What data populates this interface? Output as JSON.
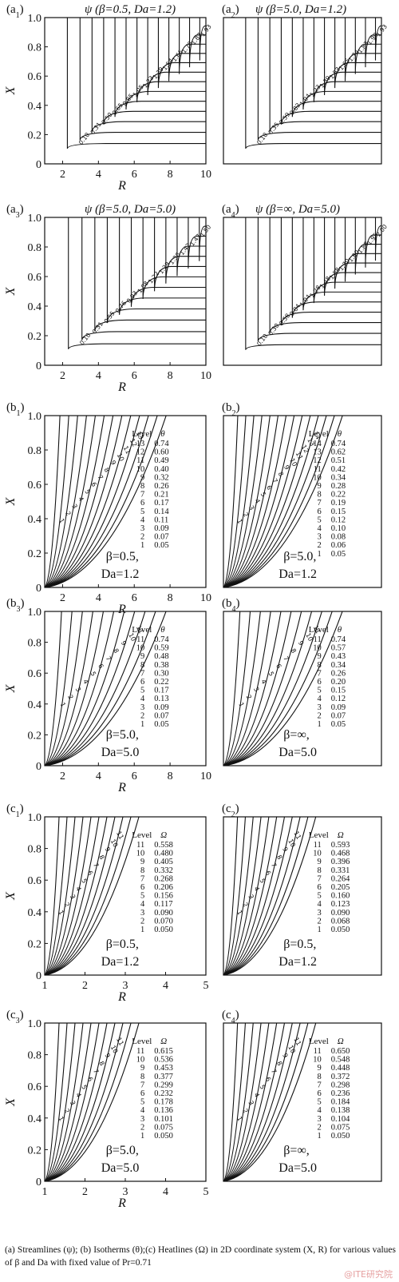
{
  "figure": {
    "caption": "(a) Streamlines (ψ); (b) Isotherms (θ);(c) Heatlines (Ω) in 2D coordinate system (X, R) for various values of β and Da with fixed value of Pr=0.71",
    "watermark": "@ITE研究院"
  },
  "chart_data": [
    {
      "id": "a1",
      "label_letter": "a",
      "label_sub": "1",
      "type": "contour",
      "title": "ψ (β=0.5, Da=1.2)",
      "xlabel": "R",
      "ylabel": "X",
      "xlim": [
        1,
        10
      ],
      "ylim": [
        0,
        1
      ],
      "xticks": [
        "2",
        "4",
        "6",
        "8",
        "10"
      ],
      "yticks": [
        "0",
        "0.2",
        "0.4",
        "0.6",
        "0.8",
        "1.0"
      ],
      "levels": [
        "0.10",
        "0.31",
        "0.50",
        "0.65",
        "0.85",
        "1.05",
        "1.23",
        "1.39",
        "1.54",
        "1.66",
        "1.78",
        "1.87",
        "1.93"
      ]
    },
    {
      "id": "a2",
      "label_letter": "a",
      "label_sub": "2",
      "type": "contour",
      "title": "ψ (β=5.0, Da=1.2)",
      "xlabel": "",
      "ylabel": "",
      "xlim": [
        1,
        10
      ],
      "ylim": [
        0,
        1
      ],
      "xticks": [],
      "yticks": [],
      "levels": [
        "0.10",
        "0.35",
        "0.59",
        "0.82",
        "1.04",
        "1.23",
        "1.39",
        "1.53",
        "1.65",
        "1.74",
        "1.83",
        "1.90",
        "1.93"
      ]
    },
    {
      "id": "a3",
      "label_letter": "a",
      "label_sub": "3",
      "type": "contour",
      "title": "ψ (β=5.0, Da=5.0)",
      "xlabel": "R",
      "ylabel": "X",
      "xlim": [
        1,
        10
      ],
      "ylim": [
        0,
        1
      ],
      "xticks": [
        "2",
        "4",
        "6",
        "8",
        "10"
      ],
      "yticks": [
        "0",
        "0.2",
        "0.4",
        "0.6",
        "0.8",
        "1.0"
      ],
      "levels": [
        "0.10",
        "0.31",
        "0.55",
        "0.76",
        "0.93",
        "1.08",
        "1.22",
        "1.29",
        "1.36",
        "1.42",
        "1.47",
        "1.50"
      ]
    },
    {
      "id": "a4",
      "label_letter": "a",
      "label_sub": "4",
      "type": "contour",
      "title": "ψ (β=∞, Da=5.0)",
      "xlabel": "",
      "ylabel": "",
      "xlim": [
        1,
        10
      ],
      "ylim": [
        0,
        1
      ],
      "xticks": [],
      "yticks": [],
      "levels": [
        "0.10",
        "0.30",
        "0.58",
        "0.84",
        "1.04",
        "1.28",
        "1.48",
        "1.58",
        "1.70",
        "1.80",
        "1.88",
        "1.95",
        "2.00"
      ]
    },
    {
      "id": "b1",
      "label_letter": "b",
      "label_sub": "1",
      "type": "contour",
      "xlabel": "R",
      "ylabel": "X",
      "xlim": [
        1,
        10
      ],
      "ylim": [
        0,
        1
      ],
      "xticks": [
        "2",
        "4",
        "6",
        "8",
        "10"
      ],
      "yticks": [
        "0",
        "0.2",
        "0.4",
        "0.6",
        "0.8",
        "1.0"
      ],
      "annot": [
        "β=0.5,",
        "Da=1.2"
      ],
      "table": {
        "head": [
          "Level",
          "θ"
        ],
        "rows": [
          [
            "13",
            "0.74"
          ],
          [
            "12",
            "0.60"
          ],
          [
            "11",
            "0.49"
          ],
          [
            "10",
            "0.40"
          ],
          [
            "9",
            "0.32"
          ],
          [
            "8",
            "0.26"
          ],
          [
            "7",
            "0.21"
          ],
          [
            "6",
            "0.17"
          ],
          [
            "5",
            "0.14"
          ],
          [
            "4",
            "0.11"
          ],
          [
            "3",
            "0.09"
          ],
          [
            "2",
            "0.07"
          ],
          [
            "1",
            "0.05"
          ]
        ]
      },
      "line_labels": [
        "13",
        "12",
        "11",
        "10",
        "9",
        "8",
        "7",
        "6",
        "5",
        "4",
        "3",
        "2",
        "1"
      ]
    },
    {
      "id": "b2",
      "label_letter": "b",
      "label_sub": "2",
      "type": "contour",
      "xlabel": "",
      "ylabel": "",
      "xlim": [
        1,
        10
      ],
      "ylim": [
        0,
        1
      ],
      "xticks": [],
      "yticks": [],
      "annot": [
        "β=5.0,",
        "Da=1.2"
      ],
      "table": {
        "head": [
          "Level",
          "θ"
        ],
        "rows": [
          [
            "14",
            "0.74"
          ],
          [
            "13",
            "0.62"
          ],
          [
            "12",
            "0.51"
          ],
          [
            "11",
            "0.42"
          ],
          [
            "10",
            "0.34"
          ],
          [
            "9",
            "0.28"
          ],
          [
            "8",
            "0.22"
          ],
          [
            "7",
            "0.19"
          ],
          [
            "6",
            "0.15"
          ],
          [
            "5",
            "0.12"
          ],
          [
            "4",
            "0.10"
          ],
          [
            "3",
            "0.08"
          ],
          [
            "2",
            "0.06"
          ],
          [
            "1",
            "0.05"
          ]
        ]
      },
      "line_labels": [
        "14",
        "13",
        "12",
        "11",
        "10",
        "9",
        "8",
        "7",
        "6",
        "5",
        "4",
        "3",
        "2",
        "1"
      ]
    },
    {
      "id": "b3",
      "label_letter": "b",
      "label_sub": "3",
      "type": "contour",
      "xlabel": "R",
      "ylabel": "X",
      "xlim": [
        1,
        10
      ],
      "ylim": [
        0,
        1
      ],
      "xticks": [
        "2",
        "4",
        "6",
        "8",
        "10"
      ],
      "yticks": [
        "0",
        "0.2",
        "0.4",
        "0.6",
        "0.8",
        "1.0"
      ],
      "annot": [
        "β=5.0,",
        "Da=5.0"
      ],
      "table": {
        "head": [
          "Level",
          "θ"
        ],
        "rows": [
          [
            "11",
            "0.74"
          ],
          [
            "10",
            "0.59"
          ],
          [
            "9",
            "0.48"
          ],
          [
            "8",
            "0.38"
          ],
          [
            "7",
            "0.30"
          ],
          [
            "6",
            "0.22"
          ],
          [
            "5",
            "0.17"
          ],
          [
            "4",
            "0.13"
          ],
          [
            "3",
            "0.09"
          ],
          [
            "2",
            "0.07"
          ],
          [
            "1",
            "0.05"
          ]
        ]
      },
      "line_labels": [
        "11",
        "10",
        "9",
        "8",
        "7",
        "6",
        "5",
        "4",
        "3",
        "2",
        "1"
      ]
    },
    {
      "id": "b4",
      "label_letter": "b",
      "label_sub": "4",
      "type": "contour",
      "xlabel": "",
      "ylabel": "",
      "xlim": [
        1,
        10
      ],
      "ylim": [
        0,
        1
      ],
      "xticks": [],
      "yticks": [],
      "annot": [
        "β=∞,",
        "Da=5.0"
      ],
      "table": {
        "head": [
          "Level",
          "θ"
        ],
        "rows": [
          [
            "11",
            "0.74"
          ],
          [
            "10",
            "0.57"
          ],
          [
            "9",
            "0.43"
          ],
          [
            "8",
            "0.34"
          ],
          [
            "7",
            "0.26"
          ],
          [
            "6",
            "0.20"
          ],
          [
            "5",
            "0.15"
          ],
          [
            "4",
            "0.12"
          ],
          [
            "3",
            "0.09"
          ],
          [
            "2",
            "0.07"
          ],
          [
            "1",
            "0.05"
          ]
        ]
      },
      "line_labels": [
        "11",
        "10",
        "9",
        "8",
        "7",
        "6",
        "5",
        "4",
        "3",
        "2",
        "1"
      ]
    },
    {
      "id": "c1",
      "label_letter": "c",
      "label_sub": "1",
      "type": "contour",
      "xlabel": "R",
      "ylabel": "X",
      "xlim": [
        1,
        5
      ],
      "ylim": [
        0,
        1
      ],
      "xticks": [
        "1",
        "2",
        "3",
        "4",
        "5"
      ],
      "yticks": [
        "0",
        "0.2",
        "0.4",
        "0.6",
        "0.8",
        "1.0"
      ],
      "annot": [
        "β=0.5,",
        "Da=1.2"
      ],
      "table": {
        "head": [
          "Level",
          "Ω"
        ],
        "rows": [
          [
            "11",
            "0.558"
          ],
          [
            "10",
            "0.480"
          ],
          [
            "9",
            "0.405"
          ],
          [
            "8",
            "0.332"
          ],
          [
            "7",
            "0.268"
          ],
          [
            "6",
            "0.206"
          ],
          [
            "5",
            "0.156"
          ],
          [
            "4",
            "0.117"
          ],
          [
            "3",
            "0.090"
          ],
          [
            "2",
            "0.070"
          ],
          [
            "1",
            "0.050"
          ]
        ]
      },
      "line_labels": [
        "11",
        "10",
        "9",
        "8",
        "7",
        "6",
        "5",
        "4",
        "3",
        "2",
        "1"
      ]
    },
    {
      "id": "c2",
      "label_letter": "c",
      "label_sub": "2",
      "type": "contour",
      "xlabel": "",
      "ylabel": "",
      "xlim": [
        1,
        5
      ],
      "ylim": [
        0,
        1
      ],
      "xticks": [],
      "yticks": [],
      "annot": [
        "β=0.5,",
        "Da=1.2"
      ],
      "table": {
        "head": [
          "Level",
          "Ω"
        ],
        "rows": [
          [
            "11",
            "0.593"
          ],
          [
            "10",
            "0.468"
          ],
          [
            "9",
            "0.396"
          ],
          [
            "8",
            "0.331"
          ],
          [
            "7",
            "0.264"
          ],
          [
            "6",
            "0.205"
          ],
          [
            "5",
            "0.160"
          ],
          [
            "4",
            "0.123"
          ],
          [
            "3",
            "0.090"
          ],
          [
            "2",
            "0.068"
          ],
          [
            "1",
            "0.050"
          ]
        ]
      },
      "line_labels": [
        "11",
        "10",
        "9",
        "8",
        "7",
        "6",
        "5",
        "4",
        "3",
        "2",
        "1"
      ]
    },
    {
      "id": "c3",
      "label_letter": "c",
      "label_sub": "3",
      "type": "contour",
      "xlabel": "R",
      "ylabel": "X",
      "xlim": [
        1,
        5
      ],
      "ylim": [
        0,
        1
      ],
      "xticks": [
        "1",
        "2",
        "3",
        "4",
        "5"
      ],
      "yticks": [
        "0",
        "0.2",
        "0.4",
        "0.6",
        "0.8",
        "1.0"
      ],
      "annot": [
        "β=5.0,",
        "Da=5.0"
      ],
      "table": {
        "head": [
          "Level",
          "Ω"
        ],
        "rows": [
          [
            "11",
            "0.615"
          ],
          [
            "10",
            "0.536"
          ],
          [
            "9",
            "0.453"
          ],
          [
            "8",
            "0.377"
          ],
          [
            "7",
            "0.299"
          ],
          [
            "6",
            "0.232"
          ],
          [
            "5",
            "0.178"
          ],
          [
            "4",
            "0.136"
          ],
          [
            "3",
            "0.101"
          ],
          [
            "2",
            "0.075"
          ],
          [
            "1",
            "0.050"
          ]
        ]
      },
      "line_labels": [
        "11",
        "10",
        "9",
        "8",
        "7",
        "6",
        "5",
        "4",
        "3",
        "2",
        "1"
      ]
    },
    {
      "id": "c4",
      "label_letter": "c",
      "label_sub": "4",
      "type": "contour",
      "xlabel": "",
      "ylabel": "",
      "xlim": [
        1,
        5
      ],
      "ylim": [
        0,
        1
      ],
      "xticks": [],
      "yticks": [],
      "annot": [
        "β=∞,",
        "Da=5.0"
      ],
      "table": {
        "head": [
          "Level",
          "Ω"
        ],
        "rows": [
          [
            "11",
            "0.650"
          ],
          [
            "10",
            "0.548"
          ],
          [
            "9",
            "0.448"
          ],
          [
            "8",
            "0.372"
          ],
          [
            "7",
            "0.298"
          ],
          [
            "6",
            "0.236"
          ],
          [
            "5",
            "0.184"
          ],
          [
            "4",
            "0.138"
          ],
          [
            "3",
            "0.104"
          ],
          [
            "2",
            "0.075"
          ],
          [
            "1",
            "0.050"
          ]
        ]
      },
      "line_labels": [
        "11",
        "10",
        "9",
        "8",
        "7",
        "6",
        "5",
        "4",
        "3",
        "2",
        "1"
      ]
    }
  ]
}
